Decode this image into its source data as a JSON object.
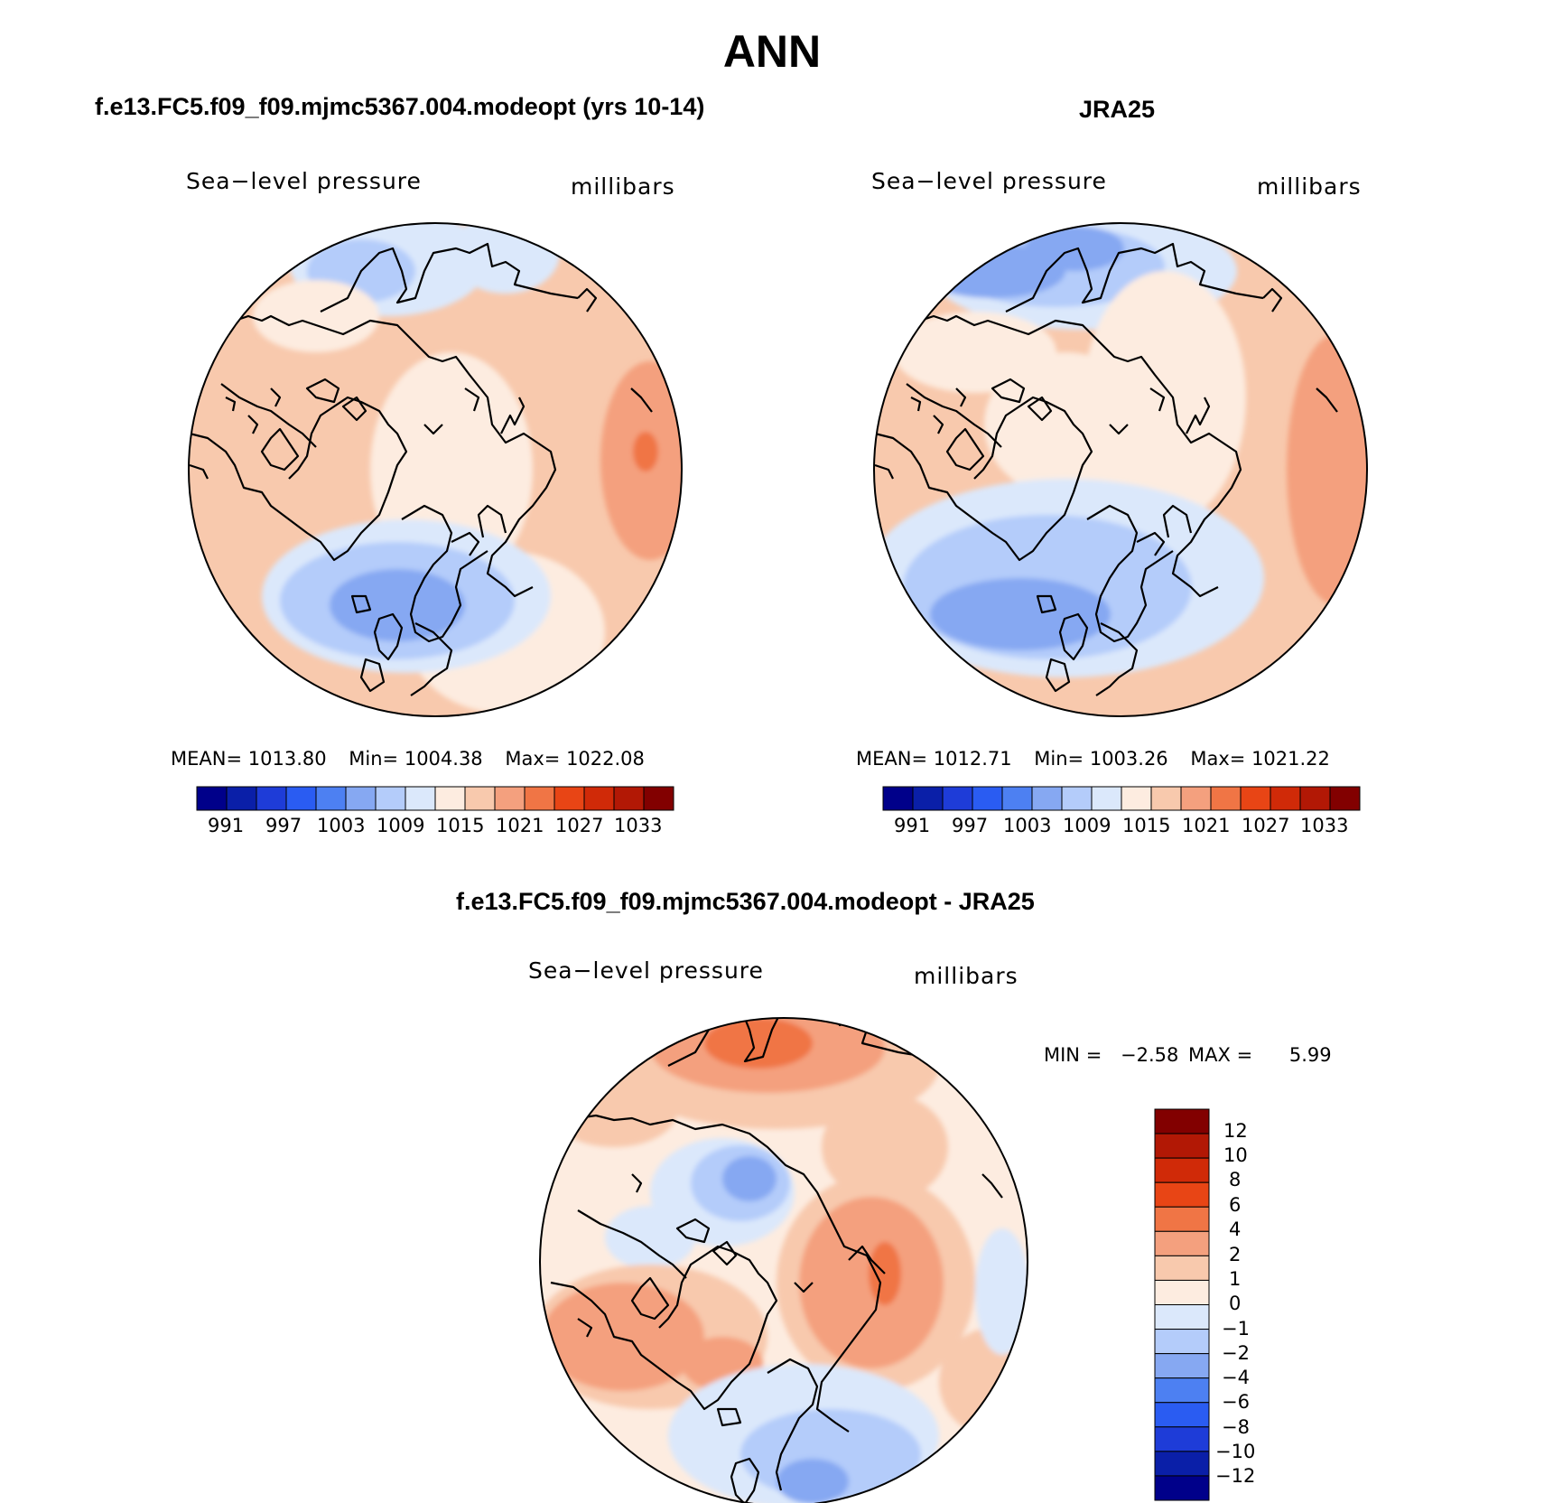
{
  "title": "ANN",
  "colors": {
    "abs_scale": [
      "#00008a",
      "#0a1fa8",
      "#1e3cd8",
      "#2a5cf2",
      "#4d80f2",
      "#86a8f2",
      "#b4ccfa",
      "#dbe8fb",
      "#fdece0",
      "#f8c9ad",
      "#f4a07e",
      "#f07545",
      "#e84515",
      "#d02a08",
      "#b21805",
      "#820000"
    ],
    "diff_scale": [
      "#00008a",
      "#0a1fa8",
      "#1e3cd8",
      "#2a5cf2",
      "#4d80f2",
      "#86a8f2",
      "#b4ccfa",
      "#dbe8fb",
      "#fdece0",
      "#f8c9ad",
      "#f4a07e",
      "#f07545",
      "#e84515",
      "#d02a08",
      "#b21805",
      "#820000"
    ],
    "coastline": "#000000"
  },
  "panels": [
    {
      "id": "model",
      "title": "f.e13.FC5.f09_f09.mjmc5367.004.modeopt (yrs 10-14)",
      "variable": "Sea−level pressure",
      "units": "millibars",
      "stats": {
        "mean_label": "MEAN=",
        "mean": "1013.80",
        "min_label": "Min=",
        "min": "1004.38",
        "max_label": "Max=",
        "max": "1022.08"
      },
      "colorbar_ticks": [
        "991",
        "997",
        "1003",
        "1009",
        "1015",
        "1021",
        "1027",
        "1033"
      ]
    },
    {
      "id": "obs",
      "title": "JRA25",
      "variable": "Sea−level pressure",
      "units": "millibars",
      "stats": {
        "mean_label": "MEAN=",
        "mean": "1012.71",
        "min_label": "Min=",
        "min": "1003.26",
        "max_label": "Max=",
        "max": "1021.22"
      },
      "colorbar_ticks": [
        "991",
        "997",
        "1003",
        "1009",
        "1015",
        "1021",
        "1027",
        "1033"
      ]
    },
    {
      "id": "diff",
      "title": "f.e13.FC5.f09_f09.mjmc5367.004.modeopt - JRA25",
      "variable": "Sea−level pressure",
      "units": "millibars",
      "stats": {
        "min_label": "MIN =",
        "min": "−2.58",
        "max_label": "MAX =",
        "max": "5.99"
      },
      "colorbar_ticks": [
        "12",
        "10",
        "8",
        "6",
        "4",
        "2",
        "1",
        "0",
        "−1",
        "−2",
        "−4",
        "−6",
        "−8",
        "−10",
        "−12"
      ]
    }
  ]
}
